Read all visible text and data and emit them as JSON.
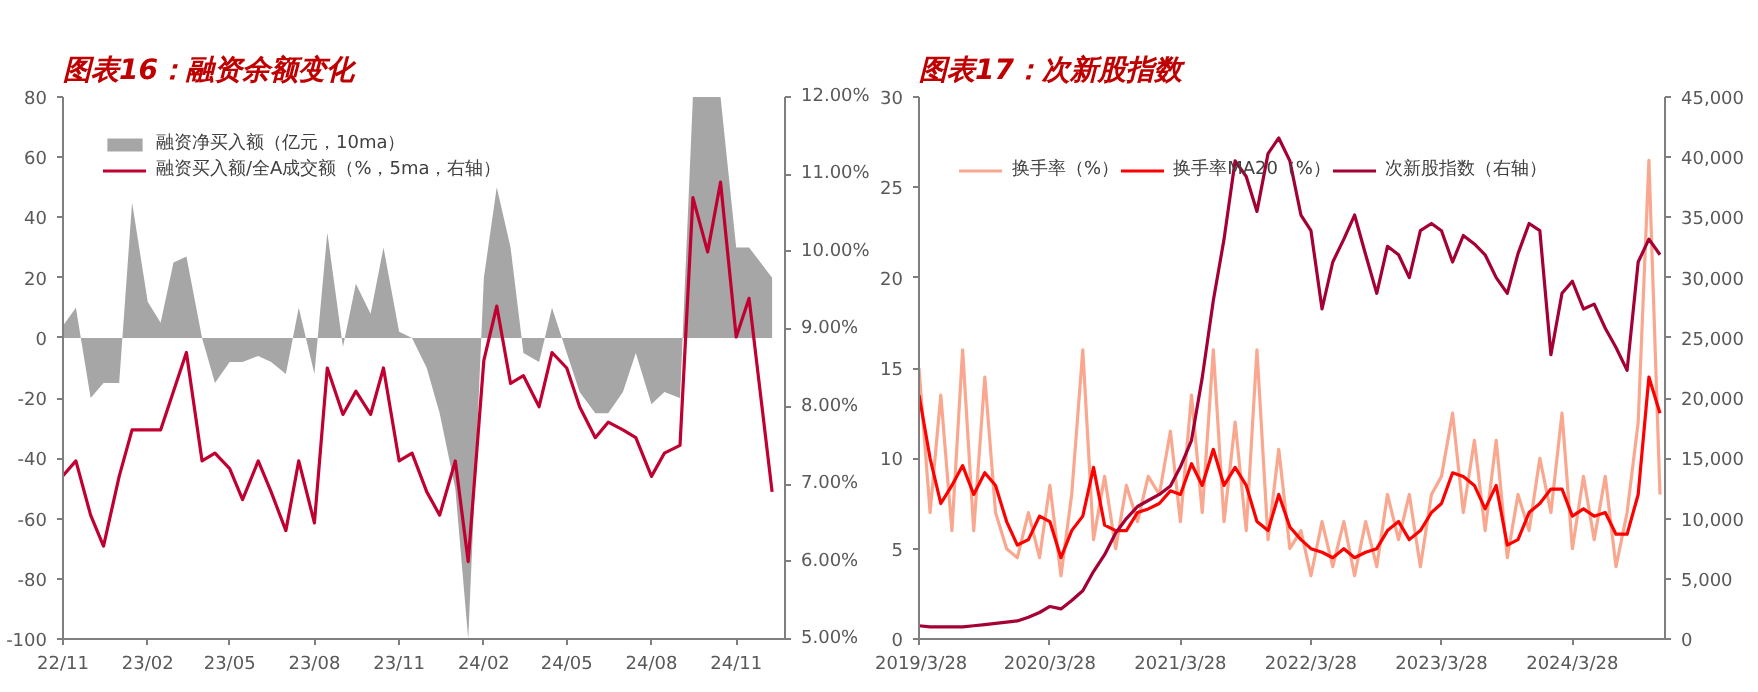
{
  "chart_data": [
    {
      "type": "line",
      "title": "图表16：融资余额变化",
      "legend": "top",
      "grid": false,
      "x": [
        "2022-11-01",
        "2022-11-15",
        "2022-12-01",
        "2022-12-15",
        "2023-01-01",
        "2023-01-15",
        "2023-02-01",
        "2023-02-15",
        "2023-03-01",
        "2023-03-15",
        "2023-04-01",
        "2023-04-15",
        "2023-05-01",
        "2023-05-15",
        "2023-06-01",
        "2023-06-15",
        "2023-07-01",
        "2023-07-15",
        "2023-08-01",
        "2023-08-15",
        "2023-09-01",
        "2023-09-15",
        "2023-10-01",
        "2023-10-15",
        "2023-11-01",
        "2023-11-15",
        "2023-12-01",
        "2023-12-15",
        "2024-01-01",
        "2024-01-15",
        "2024-02-01",
        "2024-02-15",
        "2024-03-01",
        "2024-03-15",
        "2024-04-01",
        "2024-04-15",
        "2024-05-01",
        "2024-05-15",
        "2024-06-01",
        "2024-06-15",
        "2024-07-01",
        "2024-07-15",
        "2024-08-01",
        "2024-08-15",
        "2024-09-01",
        "2024-09-15",
        "2024-10-01",
        "2024-10-15",
        "2024-11-01",
        "2024-11-15",
        "2024-12-10"
      ],
      "xlim": [
        "2022-11-01",
        "2024-12-24"
      ],
      "xticks": [
        {
          "value": "2022-11-01",
          "label": "22/11"
        },
        {
          "value": "2023-02-01",
          "label": "23/02"
        },
        {
          "value": "2023-05-01",
          "label": "23/05"
        },
        {
          "value": "2023-08-01",
          "label": "23/08"
        },
        {
          "value": "2023-11-01",
          "label": "23/11"
        },
        {
          "value": "2024-02-01",
          "label": "24/02"
        },
        {
          "value": "2024-05-01",
          "label": "24/05"
        },
        {
          "value": "2024-08-01",
          "label": "24/08"
        },
        {
          "value": "2024-11-01",
          "label": "24/11"
        }
      ],
      "ylim": [
        -100,
        80
      ],
      "yticks": [
        -100,
        -80,
        -60,
        -40,
        -20,
        0,
        20,
        40,
        60,
        80
      ],
      "y2lim": [
        5,
        12
      ],
      "y2ticks": [
        {
          "value": 5,
          "label": "5.00%"
        },
        {
          "value": 6,
          "label": "6.00%"
        },
        {
          "value": 7,
          "label": "7.00%"
        },
        {
          "value": 8,
          "label": "8.00%"
        },
        {
          "value": 9,
          "label": "9.00%"
        },
        {
          "value": 10,
          "label": "10.00%"
        },
        {
          "value": 11,
          "label": "11.00%"
        },
        {
          "value": 12,
          "label": "12.00%"
        }
      ],
      "series": [
        {
          "name": "融资净买入额（亿元，10ma）",
          "type": "area",
          "color": "#a6a6a6",
          "values": [
            4,
            10,
            -20,
            -15,
            -15,
            45,
            12,
            5,
            25,
            27,
            0,
            -15,
            -8,
            -8,
            -6,
            -8,
            -12,
            10,
            -12,
            35,
            -3,
            18,
            8,
            30,
            2,
            0,
            -10,
            -25,
            -50,
            -100,
            20,
            50,
            30,
            -5,
            -8,
            10,
            -5,
            -18,
            -25,
            -25,
            -18,
            -5,
            -22,
            -18,
            -20,
            80,
            80,
            80,
            30,
            30,
            20
          ]
        },
        {
          "name": "融资买入额/全A成交额（%，5ma，右轴）",
          "type": "line",
          "axis": "y2",
          "color": "#c00031",
          "values": [
            7.11,
            7.3,
            6.6,
            6.2,
            7.1,
            7.7,
            7.7,
            7.7,
            8.2,
            8.7,
            7.3,
            7.4,
            7.2,
            6.8,
            7.3,
            6.9,
            6.4,
            7.3,
            6.5,
            8.5,
            7.9,
            8.2,
            7.9,
            8.5,
            7.3,
            7.4,
            6.9,
            6.6,
            7.3,
            6.0,
            8.6,
            9.3,
            8.3,
            8.4,
            8.0,
            8.7,
            8.5,
            8.0,
            7.6,
            7.8,
            7.7,
            7.6,
            7.1,
            7.4,
            7.5,
            10.7,
            10.0,
            10.9,
            8.9,
            9.4,
            6.9
          ]
        }
      ]
    },
    {
      "type": "line",
      "title": "图表17：次新股指数",
      "legend": "top",
      "grid": false,
      "x": [
        "2019-03-28",
        "2019-04-28",
        "2019-05-28",
        "2019-06-28",
        "2019-07-28",
        "2019-08-28",
        "2019-09-28",
        "2019-10-28",
        "2019-11-28",
        "2019-12-28",
        "2020-01-28",
        "2020-02-28",
        "2020-03-28",
        "2020-04-28",
        "2020-05-28",
        "2020-06-28",
        "2020-07-28",
        "2020-08-28",
        "2020-09-28",
        "2020-10-28",
        "2020-11-28",
        "2020-12-28",
        "2021-01-28",
        "2021-02-28",
        "2021-03-28",
        "2021-04-28",
        "2021-05-28",
        "2021-06-28",
        "2021-07-28",
        "2021-08-28",
        "2021-09-28",
        "2021-10-28",
        "2021-11-28",
        "2021-12-28",
        "2022-01-28",
        "2022-02-28",
        "2022-03-28",
        "2022-04-28",
        "2022-05-28",
        "2022-06-28",
        "2022-07-28",
        "2022-08-28",
        "2022-09-28",
        "2022-10-28",
        "2022-11-28",
        "2022-12-28",
        "2023-01-28",
        "2023-02-28",
        "2023-03-28",
        "2023-04-28",
        "2023-05-28",
        "2023-06-28",
        "2023-07-28",
        "2023-08-28",
        "2023-09-28",
        "2023-10-28",
        "2023-11-28",
        "2023-12-28",
        "2024-01-28",
        "2024-02-28",
        "2024-03-28",
        "2024-04-28",
        "2024-05-28",
        "2024-06-28",
        "2024-07-28",
        "2024-08-28",
        "2024-09-28",
        "2024-10-28",
        "2024-11-28"
      ],
      "xlim": [
        "2019-03-28",
        "2024-12-12"
      ],
      "xticks": [
        {
          "value": "2019-03-28",
          "label": "2019/3/28"
        },
        {
          "value": "2020-03-28",
          "label": "2020/3/28"
        },
        {
          "value": "2021-03-28",
          "label": "2021/3/28"
        },
        {
          "value": "2022-03-28",
          "label": "2022/3/28"
        },
        {
          "value": "2023-03-28",
          "label": "2023/3/28"
        },
        {
          "value": "2024-03-28",
          "label": "2024/3/28"
        }
      ],
      "ylim": [
        0,
        30
      ],
      "yticks": [
        0,
        5,
        10,
        15,
        20,
        25,
        30
      ],
      "y2lim": [
        0,
        45000
      ],
      "y2ticks": [
        0,
        {
          "value": 5000,
          "label": "5,000"
        },
        {
          "value": 10000,
          "label": "10,000"
        },
        {
          "value": 15000,
          "label": "15,000"
        },
        {
          "value": 20000,
          "label": "20,000"
        },
        {
          "value": 25000,
          "label": "25,000"
        },
        {
          "value": 30000,
          "label": "30,000"
        },
        {
          "value": 35000,
          "label": "35,000"
        },
        {
          "value": 40000,
          "label": "40,000"
        },
        {
          "value": 45000,
          "label": "45,000"
        }
      ],
      "series": [
        {
          "name": "换手率（%）",
          "color": "#f9a88f",
          "values": [
            15,
            7,
            13.5,
            6,
            16,
            6,
            14.5,
            7,
            5,
            4.5,
            7,
            4.5,
            8.5,
            3.5,
            8,
            16,
            5.5,
            9,
            5,
            8.5,
            6.5,
            9,
            8,
            11.5,
            6.5,
            13.5,
            7,
            16,
            6.5,
            12,
            6,
            16,
            5.5,
            10.5,
            5,
            6,
            3.5,
            6.5,
            4,
            6.5,
            3.5,
            6.5,
            4,
            8,
            5.5,
            8,
            4,
            8,
            9,
            12.5,
            7,
            11,
            6,
            11,
            4.5,
            8,
            6,
            10,
            7,
            12.5,
            5,
            9,
            5.5,
            9,
            4,
            7,
            12,
            26.5,
            8
          ]
        },
        {
          "name": "换手率MA20（%）",
          "color": "#ff0000",
          "values": [
            13.5,
            10,
            7.5,
            8.5,
            9.6,
            8,
            9.2,
            8.5,
            6.5,
            5.2,
            5.5,
            6.8,
            6.5,
            4.5,
            6,
            6.8,
            9.5,
            6.3,
            6,
            6,
            7,
            7.2,
            7.5,
            8.2,
            8,
            9.7,
            8.5,
            10.5,
            8.5,
            9.5,
            8.5,
            6.5,
            6,
            8,
            6.2,
            5.5,
            5,
            4.8,
            4.5,
            5,
            4.5,
            4.8,
            5,
            6,
            6.5,
            5.5,
            6,
            7,
            7.5,
            9.2,
            9,
            8.5,
            7.2,
            8.5,
            5.2,
            5.5,
            7,
            7.5,
            8.3,
            8.3,
            6.8,
            7.2,
            6.8,
            7,
            5.8,
            5.8,
            8,
            14.5,
            12.5
          ]
        },
        {
          "name": "次新股指数（右轴）",
          "axis": "y2",
          "color": "#a50034",
          "values": [
            1100,
            1000,
            1000,
            1000,
            1000,
            1100,
            1200,
            1300,
            1400,
            1500,
            1800,
            2200,
            2700,
            2500,
            3200,
            4000,
            5600,
            7000,
            8800,
            10000,
            11000,
            11500,
            12000,
            12700,
            14300,
            16500,
            21700,
            28100,
            33200,
            39700,
            38400,
            35500,
            40300,
            41600,
            39700,
            35200,
            33900,
            27400,
            31300,
            33200,
            35200,
            31900,
            28700,
            32600,
            31900,
            30000,
            33900,
            34500,
            33900,
            31300,
            33500,
            32800,
            31900,
            30000,
            28700,
            32000,
            34500,
            33900,
            23600,
            28700,
            29700,
            27400,
            27800,
            25800,
            24200,
            22300,
            31300,
            33200,
            31900
          ]
        }
      ]
    }
  ]
}
